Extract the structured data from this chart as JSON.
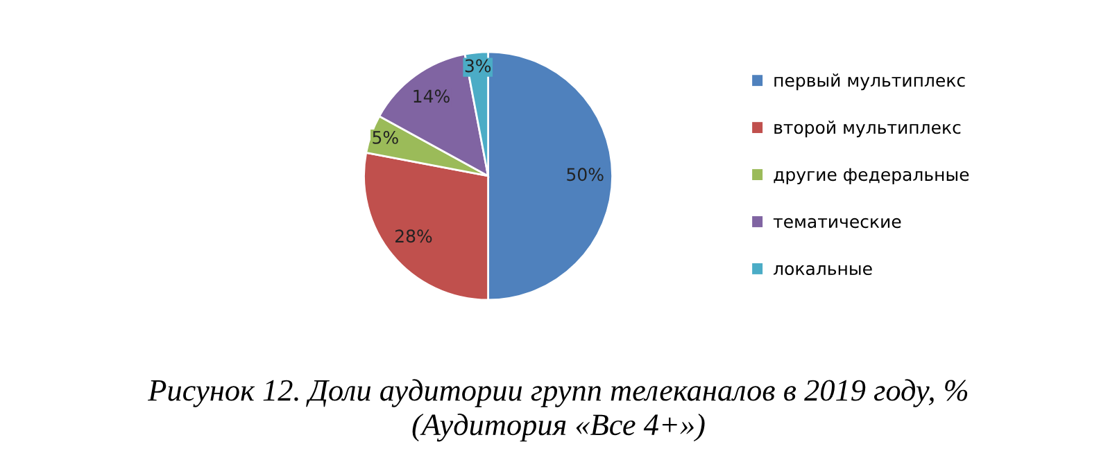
{
  "chart_data": {
    "type": "pie",
    "title": "Рисунок 12. Доли аудитории групп телеканалов в 2019 году, %\n(Аудитория «Все 4+»)",
    "categories": [
      "первый мультиплекс",
      "второй мультиплекс",
      "другие федеральные",
      "тематические",
      "локальные"
    ],
    "values": [
      50,
      28,
      5,
      14,
      3
    ],
    "value_labels": [
      "50%",
      "28%",
      "5%",
      "14%",
      "3%"
    ],
    "colors": [
      "#4f81bd",
      "#c0504d",
      "#9bbb59",
      "#8064a2",
      "#4bacc6"
    ],
    "legend": "right"
  }
}
